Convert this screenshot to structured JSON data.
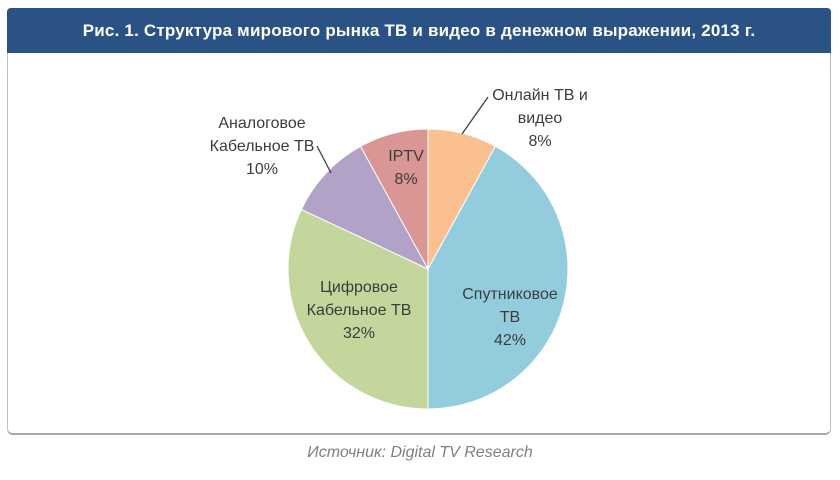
{
  "header": {
    "title": "Рис. 1. Структура мирового рынка ТВ и видео в денежном выражении, 2013 г."
  },
  "source": {
    "label": "Источник: Digital TV Research"
  },
  "colors": {
    "header_bg": "#2B5284",
    "header_text": "#FFFFFF",
    "card_border": "#C0C0C0",
    "label_text": "#3C3C3C",
    "source_text": "#7F7F7F",
    "leader_line": "#3C3C3C"
  },
  "chart_data": {
    "type": "pie",
    "title": "Структура мирового рынка ТВ и видео в денежном выражении, 2013 г.",
    "unit": "%",
    "start_angle_deg": 0,
    "direction": "clockwise",
    "legend": "none",
    "slices": [
      {
        "key": "online-tv-video",
        "label": "Онлайн ТВ и видео",
        "value": 8,
        "pct": "8%",
        "color": "#FAC090",
        "label_placement": "outside",
        "label_display": "Онлайн ТВ и\nвидео\n8%"
      },
      {
        "key": "satellite-tv",
        "label": "Спутниковое ТВ",
        "value": 42,
        "pct": "42%",
        "color": "#93CDDD",
        "label_placement": "inside",
        "label_display": "Спутниковое\nТВ\n42%"
      },
      {
        "key": "digital-cable-tv",
        "label": "Цифровое Кабельное ТВ",
        "value": 32,
        "pct": "32%",
        "color": "#C3D69B",
        "label_placement": "inside",
        "label_display": "Цифровое\nКабельное ТВ\n32%"
      },
      {
        "key": "analog-cable-tv",
        "label": "Аналоговое Кабельное ТВ",
        "value": 10,
        "pct": "10%",
        "color": "#B2A2C7",
        "label_placement": "outside",
        "label_display": "Аналоговое\nКабельное ТВ\n10%"
      },
      {
        "key": "iptv",
        "label": "IPTV",
        "value": 8,
        "pct": "8%",
        "color": "#D99694",
        "label_placement": "inside",
        "label_display": "IPTV\n8%"
      }
    ]
  }
}
